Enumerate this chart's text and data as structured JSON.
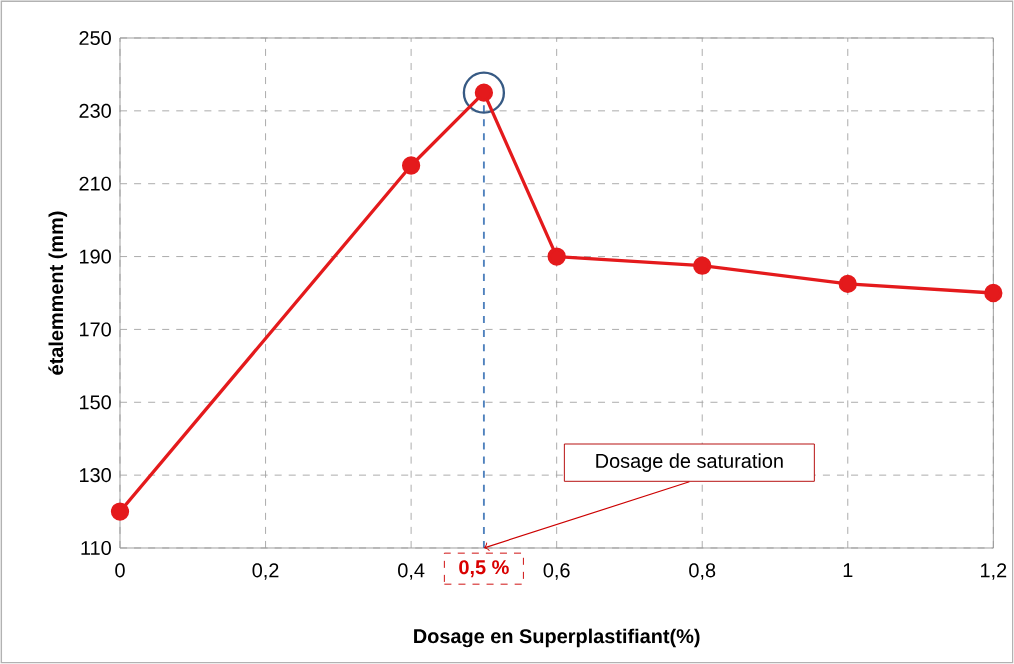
{
  "chart_data": {
    "type": "line",
    "xlabel": "Dosage en Superplastifiant(%)",
    "ylabel": "étalemment (mm)",
    "x": [
      0,
      0.4,
      0.5,
      0.6,
      0.8,
      1,
      1.2
    ],
    "series": [
      {
        "color": "#e41a1c",
        "values": [
          120,
          215,
          235,
          190,
          187.5,
          182.5,
          180
        ]
      }
    ],
    "xlim": [
      0,
      1.2
    ],
    "ylim": [
      110,
      250
    ],
    "xticks": [
      0,
      {
        "value": 0.2,
        "label": "0,2"
      },
      {
        "value": 0.4,
        "label": "0,4"
      },
      {
        "value": 0.6,
        "label": "0,6"
      },
      {
        "value": 0.8,
        "label": "0,8"
      },
      1,
      {
        "value": 1.2,
        "label": "1,2"
      }
    ],
    "yticks": [
      110,
      130,
      150,
      170,
      190,
      210,
      230,
      250
    ],
    "grid": true,
    "marker": "circle",
    "line_style": "solid",
    "ref_lines": [
      {
        "axis": "x",
        "value": 0.5,
        "label": "0,5 %",
        "color": "#4f81bd",
        "line_style": "dashed"
      }
    ],
    "annotations": [
      {
        "text": "Dosage de saturation",
        "x": 0.5,
        "y": 110
      }
    ]
  }
}
